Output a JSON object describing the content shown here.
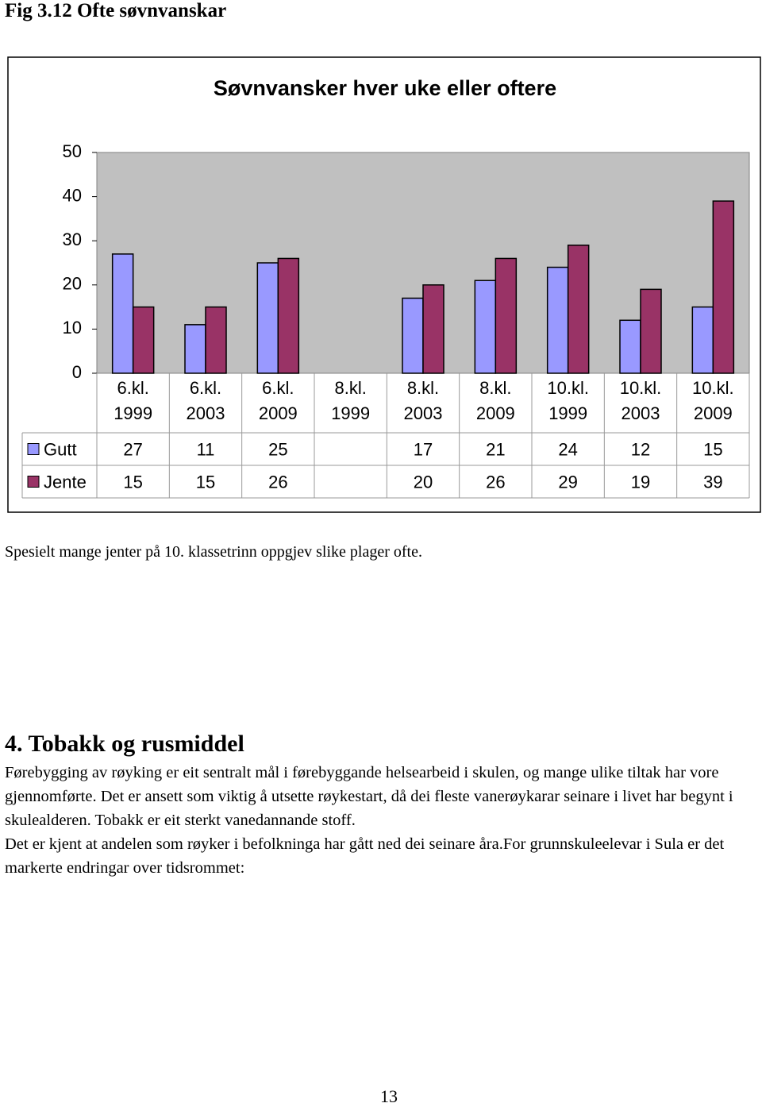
{
  "header": {
    "caption": "Fig 3.12 Ofte søvnvanskar"
  },
  "chart_data": {
    "type": "bar",
    "title": "Søvnvansker hver uke eller oftere",
    "categories": [
      "6.kl. 1999",
      "6.kl. 2003",
      "6.kl. 2009",
      "8.kl. 1999",
      "8.kl. 2003",
      "8.kl. 2009",
      "10.kl. 1999",
      "10.kl. 2003",
      "10.kl. 2009"
    ],
    "series": [
      {
        "name": "Gutt",
        "color": "#9999ff",
        "values": [
          27,
          11,
          25,
          null,
          17,
          21,
          24,
          12,
          15
        ]
      },
      {
        "name": "Jente",
        "color": "#993366",
        "values": [
          15,
          15,
          26,
          null,
          20,
          26,
          29,
          19,
          39
        ]
      }
    ],
    "ylim": [
      0,
      50
    ],
    "yticks": [
      0,
      10,
      20,
      30,
      40,
      50
    ],
    "grid": false,
    "plot_background": "#c0c0c0"
  },
  "note": "Spesielt mange jenter på 10. klassetrinn oppgjev slike plager ofte.",
  "section": {
    "heading": "4. Tobakk og rusmiddel",
    "paragraphs": [
      "Førebygging av røyking er eit sentralt mål i førebyggande helsearbeid i skulen, og mange ulike tiltak har vore gjennomførte. Det er ansett som viktig å utsette røykestart, då dei fleste vanerøykarar seinare i livet har begynt i skulealderen. Tobakk er eit sterkt vanedannande stoff.",
      "Det er kjent at andelen som røyker i befolkninga har gått ned dei seinare åra.For grunnskuleelevar i Sula er det markerte endringar over tidsrommet:"
    ]
  },
  "page_number": "13"
}
